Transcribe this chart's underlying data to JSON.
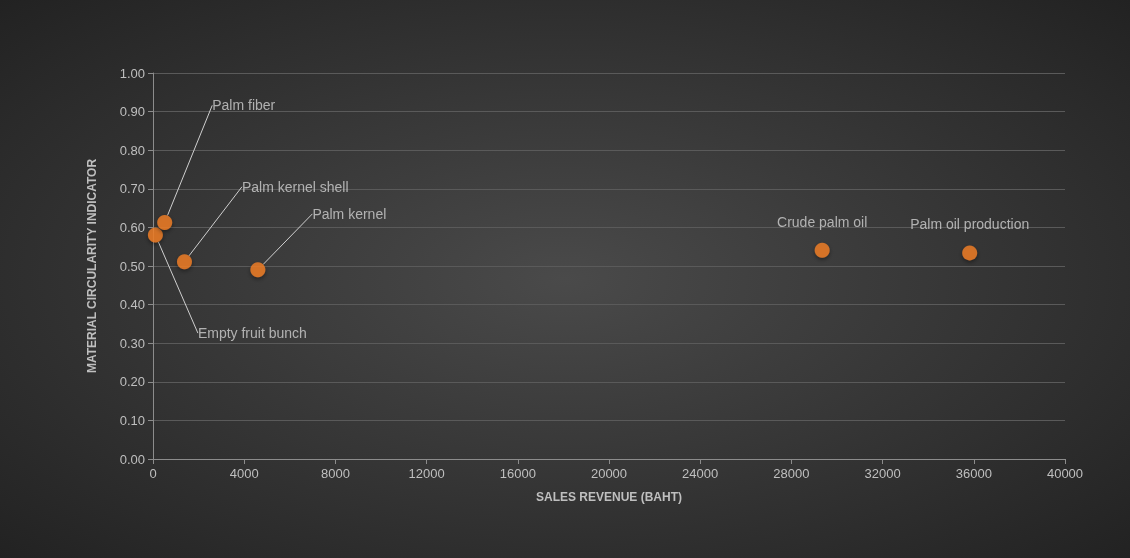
{
  "chart_data": {
    "type": "scatter",
    "xlabel": "SALES REVENUE (BAHT)",
    "ylabel": "MATERIAL CIRCULARITY INDICATOR",
    "x": [
      105,
      514,
      1380,
      4600,
      29350,
      35820
    ],
    "values": [
      0.58,
      0.613,
      0.511,
      0.49,
      0.541,
      0.534
    ],
    "color": "#f58025",
    "marker": "circle",
    "grid": "y",
    "xlim": [
      0,
      40000
    ],
    "xticks": [
      0,
      4000,
      8000,
      12000,
      16000,
      20000,
      24000,
      28000,
      32000,
      36000,
      40000
    ],
    "ylim": [
      0,
      1
    ],
    "yticks": [
      {
        "value": 0,
        "label": "0.00"
      },
      {
        "value": 0.1,
        "label": "0.10"
      },
      {
        "value": 0.2,
        "label": "0.20"
      },
      {
        "value": 0.3,
        "label": "0.30"
      },
      {
        "value": 0.4,
        "label": "0.40"
      },
      {
        "value": 0.5,
        "label": "0.50"
      },
      {
        "value": 0.6,
        "label": "0.60"
      },
      {
        "value": 0.7,
        "label": "0.70"
      },
      {
        "value": 0.8,
        "label": "0.80"
      },
      {
        "value": 0.9,
        "label": "0.90"
      },
      {
        "value": 1,
        "label": "1.00"
      }
    ],
    "annotations": [
      {
        "text": "Empty fruit bunch",
        "x": 105,
        "y": 0.58
      },
      {
        "text": "Palm fiber",
        "x": 514,
        "y": 0.613
      },
      {
        "text": "Palm kernel shell",
        "x": 1380,
        "y": 0.511
      },
      {
        "text": "Palm kernel",
        "x": 4600,
        "y": 0.49
      },
      {
        "text": "Crude palm oil",
        "x": 29350,
        "y": 0.541
      },
      {
        "text": "Palm oil production",
        "x": 35820,
        "y": 0.534
      }
    ]
  }
}
